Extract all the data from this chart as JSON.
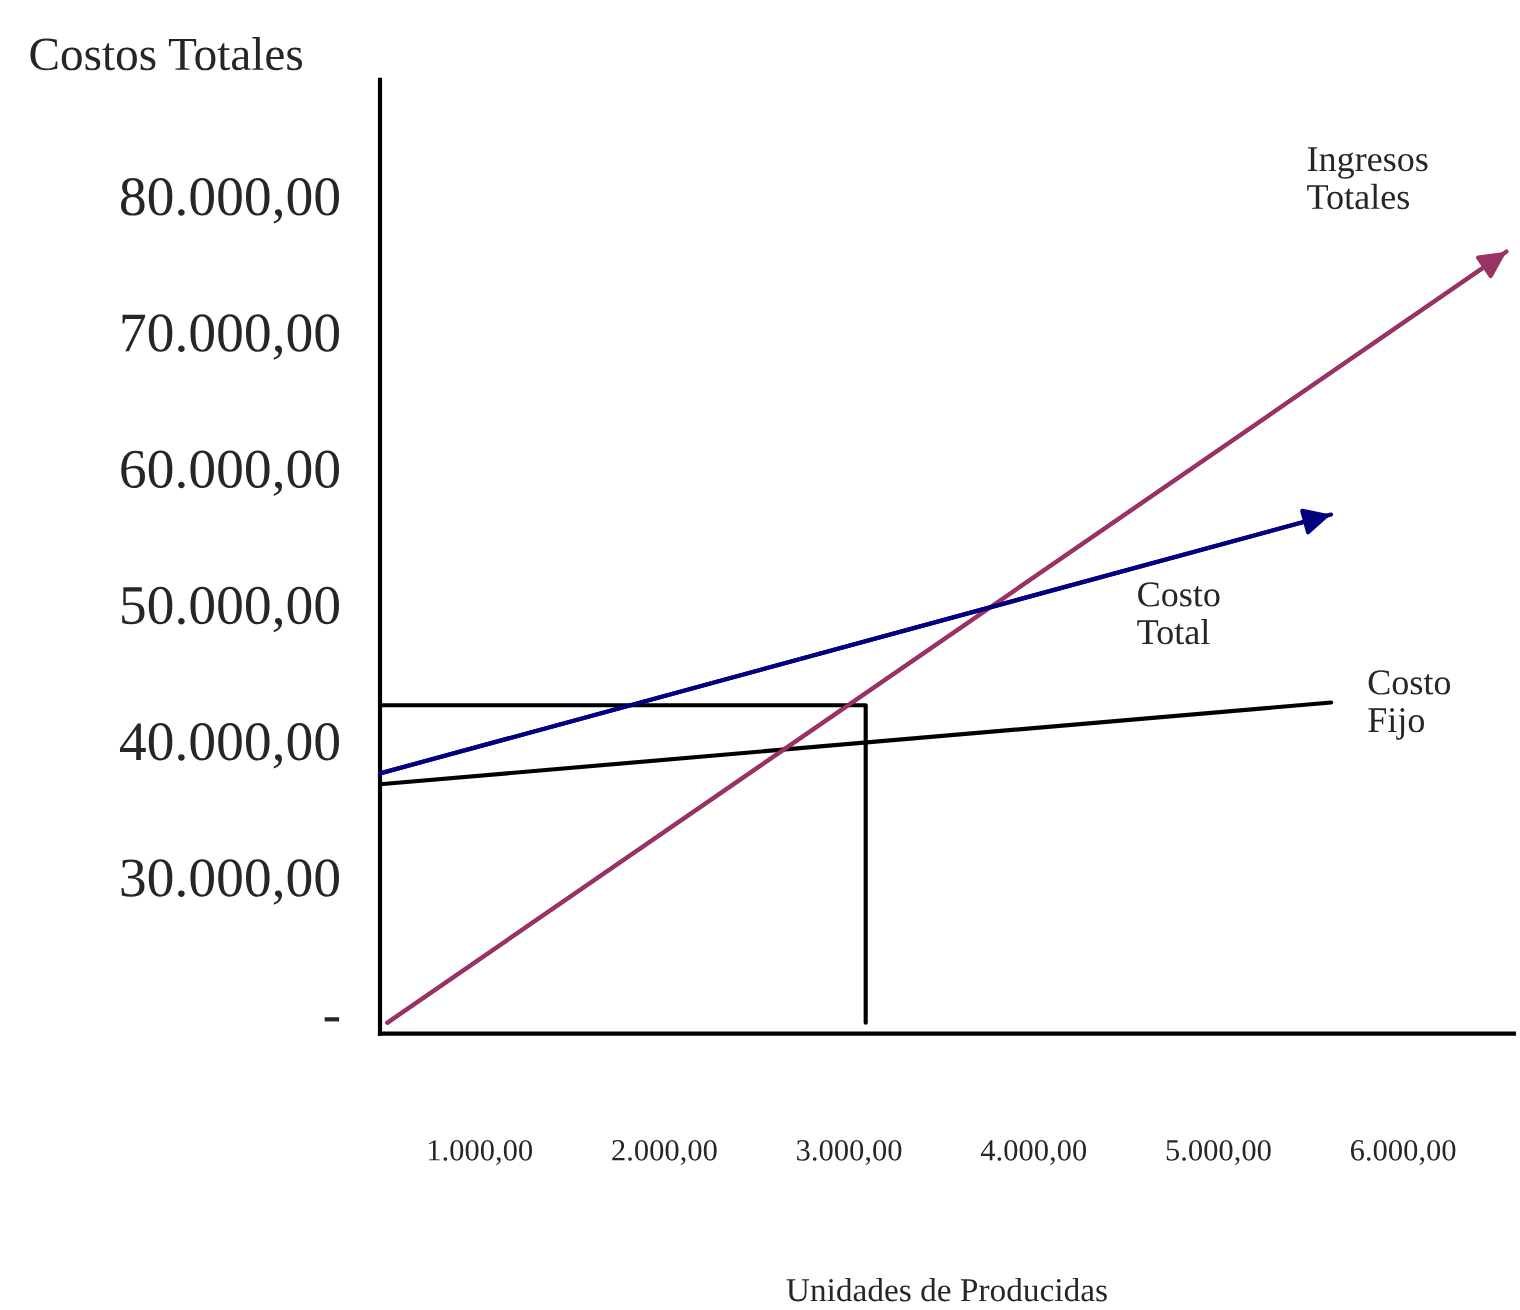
{
  "chart_data": {
    "type": "line",
    "xlabel": "Unidades de Producidas",
    "ylabel": "Costos Totales",
    "xlim": [
      460,
      6600
    ],
    "ylim": [
      18500,
      88500
    ],
    "xticks": [
      {
        "value": 1000,
        "label": "1.000,00"
      },
      {
        "value": 2000,
        "label": "2.000,00"
      },
      {
        "value": 3000,
        "label": "3.000,00"
      },
      {
        "value": 4000,
        "label": "4.000,00"
      },
      {
        "value": 5000,
        "label": "5.000,00"
      },
      {
        "value": 6000,
        "label": "6.000,00"
      }
    ],
    "yticks": [
      {
        "value": 20000,
        "label": "-"
      },
      {
        "value": 30000,
        "label": "30.000,00"
      },
      {
        "value": 40000,
        "label": "40.000,00"
      },
      {
        "value": 50000,
        "label": "50.000,00"
      },
      {
        "value": 60000,
        "label": "60.000,00"
      },
      {
        "value": 70000,
        "label": "70.000,00"
      },
      {
        "value": 80000,
        "label": "80.000,00"
      }
    ],
    "grid": false,
    "legend": false,
    "marker": "none",
    "line_style": "solid",
    "series": [
      {
        "name": "Ingresos\nTotales",
        "color": "#993366",
        "x": [
          500,
          6560
        ],
        "values": [
          19300,
          75900
        ]
      },
      {
        "name": "Costo\nTotal",
        "color": "#000080",
        "x": [
          460,
          5610
        ],
        "values": [
          37600,
          56600
        ]
      },
      {
        "name": "Costo\nFijo",
        "color": "#000000",
        "x": [
          460,
          5610
        ],
        "values": [
          36800,
          42800
        ]
      },
      {
        "color": "#000000",
        "x": [
          460,
          3090,
          3090
        ],
        "values": [
          42600,
          42600,
          19300
        ]
      }
    ]
  }
}
